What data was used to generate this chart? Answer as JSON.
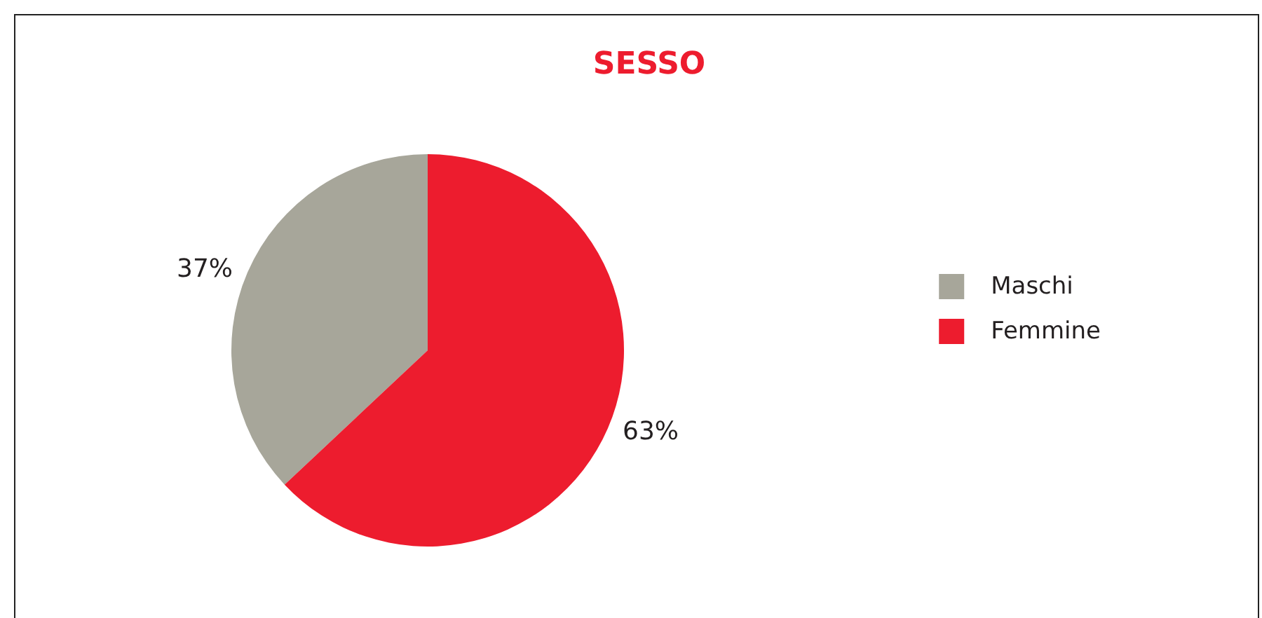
{
  "chart_data": {
    "type": "pie",
    "title": "SESSO",
    "categories": [
      "Maschi",
      "Femmine"
    ],
    "values": [
      37,
      63
    ],
    "colors": [
      "#a7a69a",
      "#ed1c2e"
    ],
    "value_labels": [
      "37%",
      "63%"
    ],
    "legend": "right"
  }
}
